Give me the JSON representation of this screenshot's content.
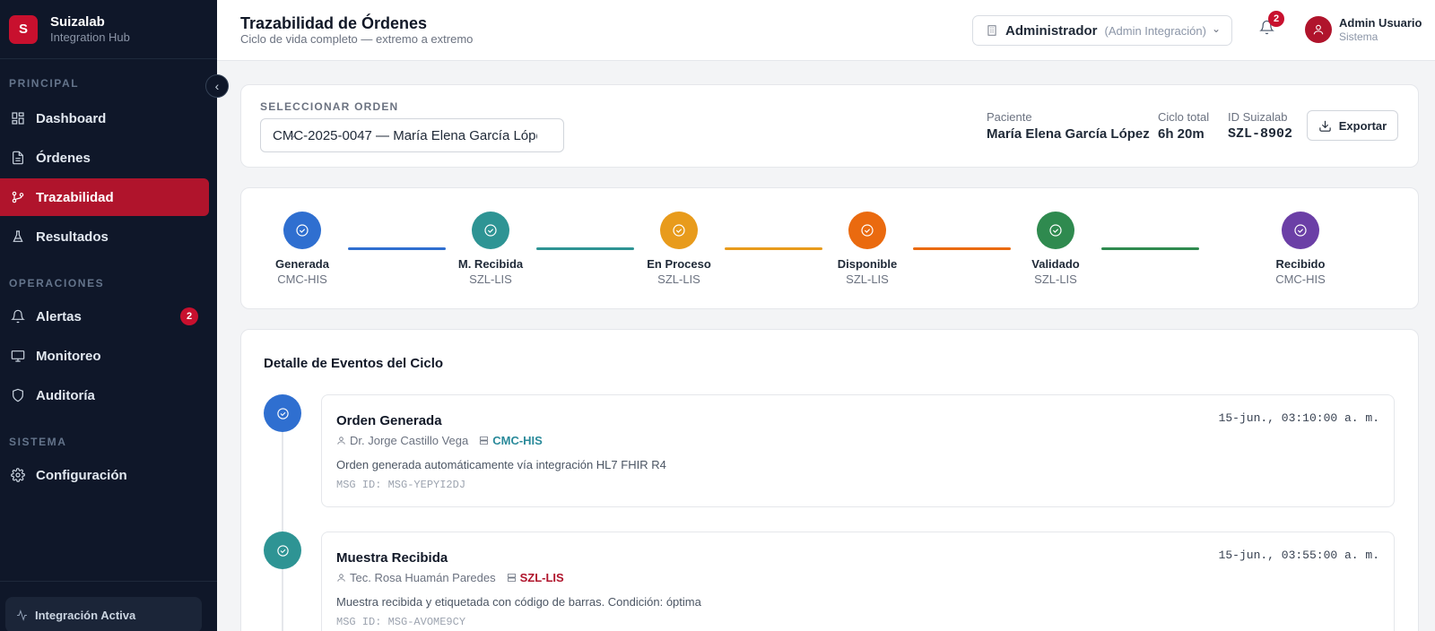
{
  "sidebar": {
    "logo_letter": "S",
    "brand_name": "Suizalab",
    "brand_sub": "Integration Hub",
    "collapse_glyph": "‹",
    "sections": [
      "PRINCIPAL",
      "OPERACIONES",
      "SISTEMA"
    ],
    "items": [
      {
        "label": "Dashboard",
        "icon": "dashboard-icon"
      },
      {
        "label": "Órdenes",
        "icon": "document-icon"
      },
      {
        "label": "Trazabilidad",
        "icon": "branch-icon",
        "active": true
      },
      {
        "label": "Resultados",
        "icon": "flask-icon"
      },
      {
        "label": "Alertas",
        "icon": "bell-icon",
        "badge": "2"
      },
      {
        "label": "Monitoreo",
        "icon": "monitor-icon"
      },
      {
        "label": "Auditoría",
        "icon": "shield-icon"
      },
      {
        "label": "Configuración",
        "icon": "gear-icon"
      }
    ],
    "status_label": "Integración Activa"
  },
  "header": {
    "title": "Trazabilidad de Órdenes",
    "subtitle": "Ciclo de vida completo — extremo a extremo",
    "role_main": "Administrador",
    "role_secondary": "(Admin Integración)",
    "notifications": "2",
    "user_name": "Admin Usuario",
    "user_role": "Sistema"
  },
  "order": {
    "select_label": "SELECCIONAR ORDEN",
    "selected": "CMC-2025-0047 — María Elena García López",
    "patient_label": "Paciente",
    "patient": "María Elena García López",
    "cycle_label": "Ciclo total",
    "cycle": "6h 20m",
    "id_label": "ID Suizalab",
    "id": "SZL-8902",
    "export_label": "Exportar"
  },
  "steps": [
    {
      "name": "Generada",
      "system": "CMC-HIS",
      "color": "#2f6fd0"
    },
    {
      "name": "M. Recibida",
      "system": "SZL-LIS",
      "color": "#2e9494"
    },
    {
      "name": "En Proceso",
      "system": "SZL-LIS",
      "color": "#e89b1c"
    },
    {
      "name": "Disponible",
      "system": "SZL-LIS",
      "color": "#ea6a0f"
    },
    {
      "name": "Validado",
      "system": "SZL-LIS",
      "color": "#2f8a4f"
    },
    {
      "name": "Recibido",
      "system": "CMC-HIS",
      "color": "#6b3fa6"
    }
  ],
  "detail": {
    "title": "Detalle de Eventos del Ciclo",
    "events": [
      {
        "title": "Orden Generada",
        "time": "15-jun., 03:10:00 a. m.",
        "user": "Dr. Jorge Castillo Vega",
        "system": "CMC-HIS",
        "system_color": "#2a8a9a",
        "description": "Orden generada automáticamente vía integración HL7 FHIR R4",
        "msg": "MSG ID: MSG-YEPYI2DJ",
        "color": "#2f6fd0"
      },
      {
        "title": "Muestra Recibida",
        "time": "15-jun., 03:55:00 a. m.",
        "user": "Tec. Rosa Huamán Paredes",
        "system": "SZL-LIS",
        "system_color": "#b0142c",
        "description": "Muestra recibida y etiquetada con código de barras. Condición: óptima",
        "msg": "MSG ID: MSG-AVOME9CY",
        "color": "#2e9494"
      }
    ]
  }
}
